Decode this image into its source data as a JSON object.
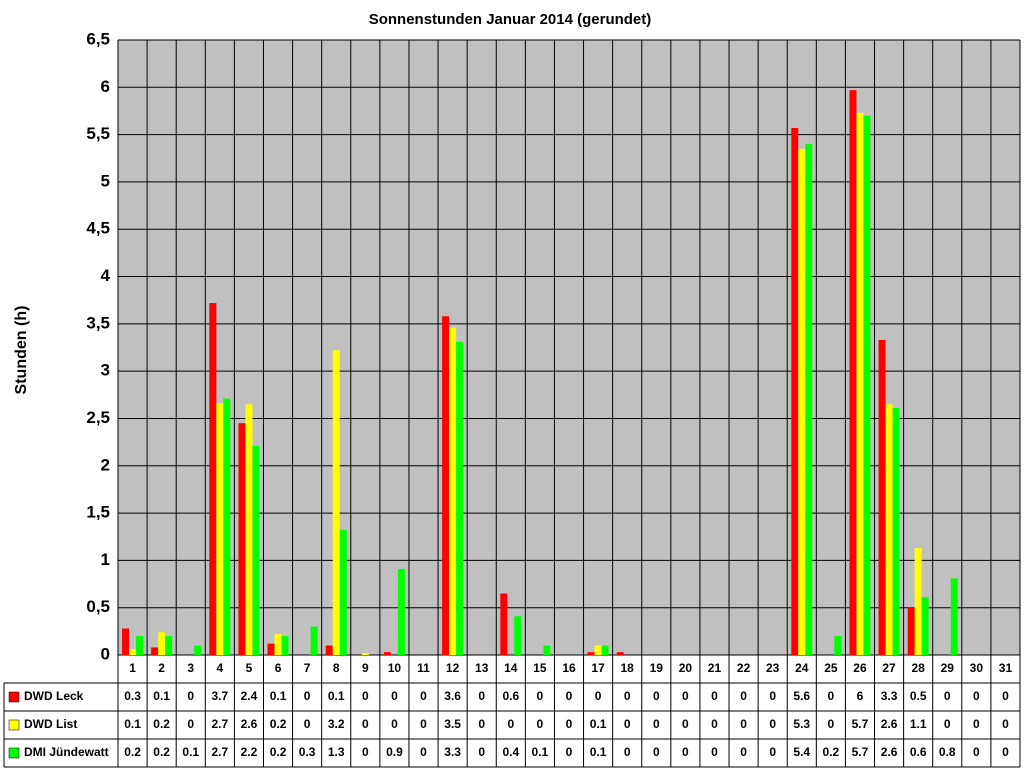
{
  "chart_data": {
    "type": "bar",
    "title": "Sonnenstunden Januar 2014 (gerundet)",
    "y_label": "Stunden (h)",
    "categories": [
      "1",
      "2",
      "3",
      "4",
      "5",
      "6",
      "7",
      "8",
      "9",
      "10",
      "11",
      "12",
      "13",
      "14",
      "15",
      "16",
      "17",
      "18",
      "19",
      "20",
      "21",
      "22",
      "23",
      "24",
      "25",
      "26",
      "27",
      "28",
      "29",
      "30",
      "31"
    ],
    "ylim": [
      0,
      6.5
    ],
    "yticks": [
      0,
      {
        "value": 0.5,
        "label": "0,5"
      },
      1,
      {
        "value": 1.5,
        "label": "1,5"
      },
      2,
      {
        "value": 2.5,
        "label": "2,5"
      },
      3,
      {
        "value": 3.5,
        "label": "3,5"
      },
      4,
      {
        "value": 4.5,
        "label": "4,5"
      },
      5,
      {
        "value": 5.5,
        "label": "5,5"
      },
      6,
      {
        "value": 6.5,
        "label": "6,5"
      }
    ],
    "grid": true,
    "series": [
      {
        "name": "DWD Leck",
        "color": "#ff0000",
        "values": [
          0.28,
          0.08,
          0,
          3.72,
          2.45,
          0.12,
          0,
          0.1,
          0,
          0.03,
          0,
          3.58,
          0,
          0.65,
          0,
          0,
          0.03,
          0.03,
          0,
          0,
          0,
          0,
          0,
          5.57,
          0,
          5.97,
          3.33,
          0.5,
          0,
          0,
          0
        ],
        "value_labels": [
          "0.3",
          "0.1",
          "0",
          "3.7",
          "2.4",
          "0.1",
          "0",
          "0.1",
          "0",
          "0",
          "0",
          "3.6",
          "0",
          "0.6",
          "0",
          "0",
          "0",
          "0",
          "0",
          "0",
          "0",
          "0",
          "0",
          "5.6",
          "0",
          "6",
          "3.3",
          "0.5",
          "0",
          "0",
          "0"
        ]
      },
      {
        "name": "DWD List",
        "color": "#ffff00",
        "values": [
          0.06,
          0.24,
          0,
          2.66,
          2.65,
          0.22,
          0,
          3.22,
          0.02,
          0,
          0,
          3.46,
          0,
          0,
          0,
          0,
          0.1,
          0,
          0,
          0,
          0,
          0,
          0,
          5.35,
          0,
          5.73,
          2.65,
          1.13,
          0,
          0,
          0
        ],
        "value_labels": [
          "0.1",
          "0.2",
          "0",
          "2.7",
          "2.6",
          "0.2",
          "0",
          "3.2",
          "0",
          "0",
          "0",
          "3.5",
          "0",
          "0",
          "0",
          "0",
          "0.1",
          "0",
          "0",
          "0",
          "0",
          "0",
          "0",
          "5.3",
          "0",
          "5.7",
          "2.6",
          "1.1",
          "0",
          "0",
          "0"
        ]
      },
      {
        "name": "DMI Jündewatt",
        "color": "#00ff00",
        "values": [
          0.2,
          0.2,
          0.1,
          2.71,
          2.21,
          0.2,
          0.3,
          1.32,
          0,
          0.91,
          0,
          3.31,
          0,
          0.41,
          0.1,
          0,
          0.1,
          0,
          0,
          0,
          0,
          0,
          0,
          5.4,
          0.2,
          5.7,
          2.61,
          0.61,
          0.81,
          0,
          0
        ],
        "value_labels": [
          "0.2",
          "0.2",
          "0.1",
          "2.7",
          "2.2",
          "0.2",
          "0.3",
          "1.3",
          "0",
          "0.9",
          "0",
          "3.3",
          "0",
          "0.4",
          "0.1",
          "0",
          "0.1",
          "0",
          "0",
          "0",
          "0",
          "0",
          "0",
          "5.4",
          "0.2",
          "5.7",
          "2.6",
          "0.6",
          "0.8",
          "0",
          "0"
        ]
      }
    ]
  }
}
